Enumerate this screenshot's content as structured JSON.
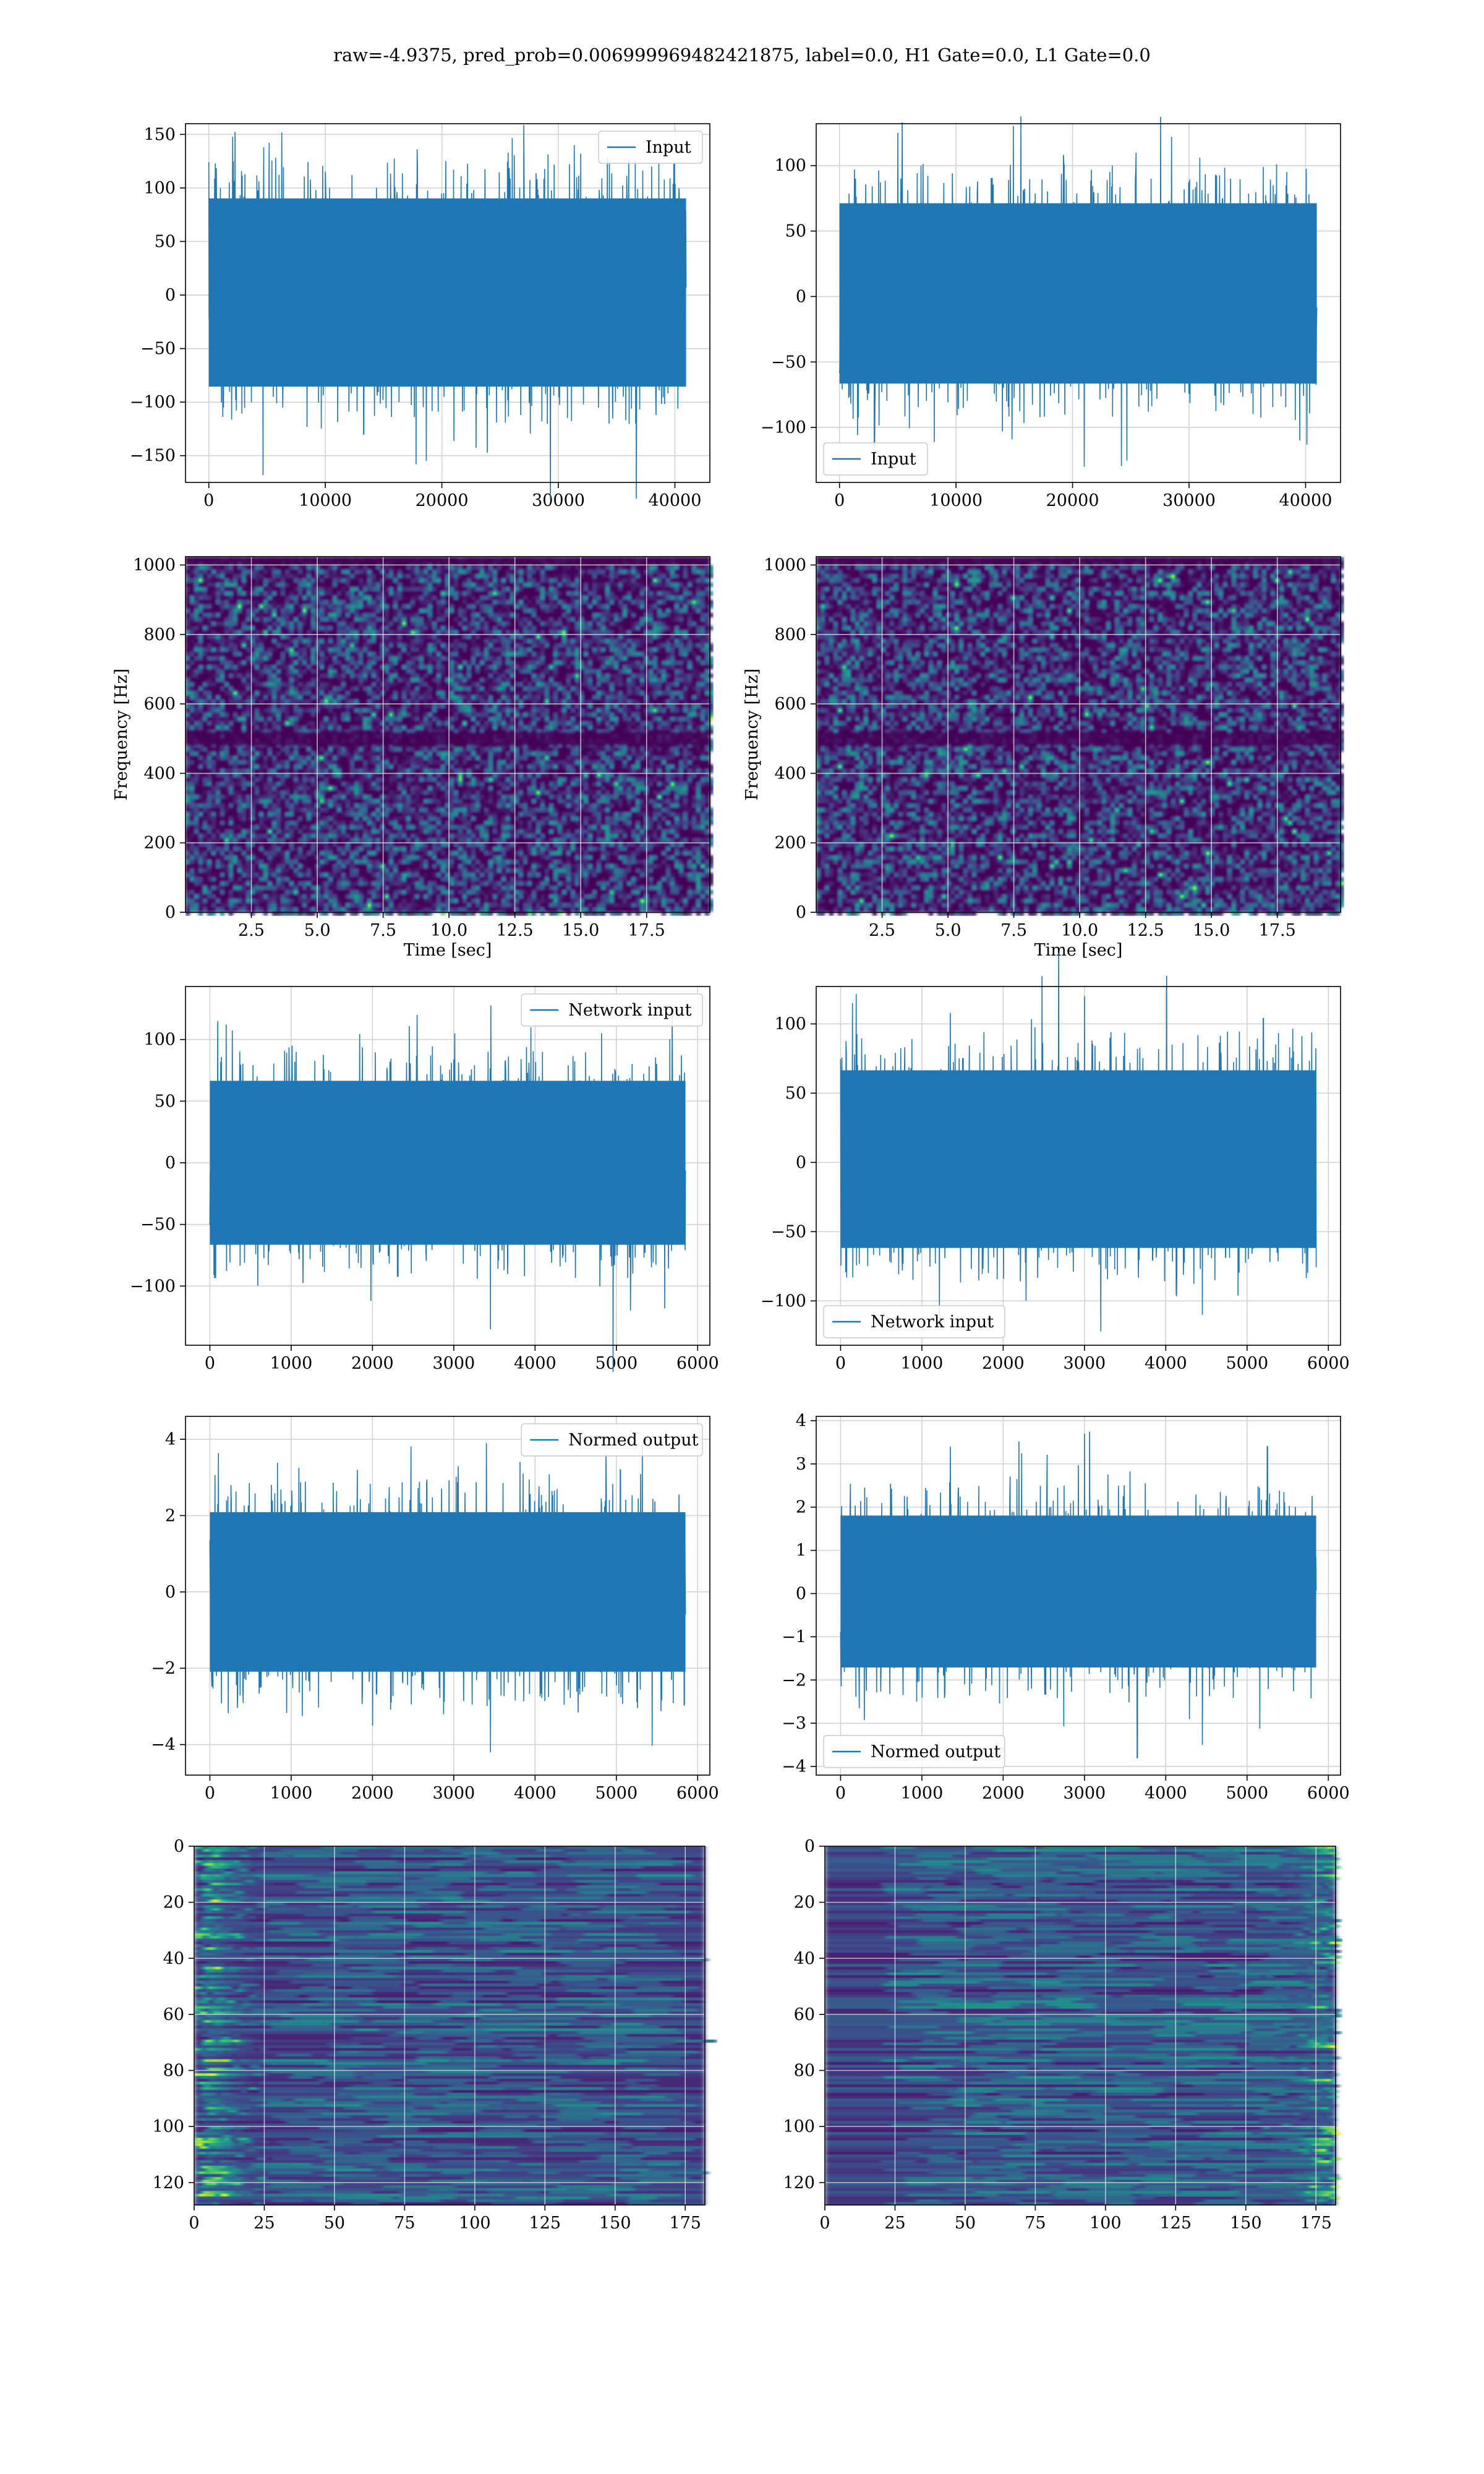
{
  "figure": {
    "title": "raw=-4.9375, pred_prob=0.006999969482421875, label=0.0, H1 Gate=0.0, L1 Gate=0.0"
  },
  "colors": {
    "series": "#1f77b4",
    "grid": "#d3d3d3",
    "viridis_dark": "#440154",
    "viridis_bright": "#fde725"
  },
  "chart_data": [
    {
      "id": "ts-input-h1",
      "type": "line",
      "row": 0,
      "col": 0,
      "xlim": [
        -2000,
        43000
      ],
      "ylim": [
        -175,
        160
      ],
      "xticks": [
        0,
        10000,
        20000,
        30000,
        40000
      ],
      "yticks": [
        -150,
        -100,
        -50,
        0,
        50,
        100,
        150
      ],
      "series": [
        {
          "name": "Input",
          "x_range": [
            0,
            40960
          ],
          "envelope": [
            -90,
            95
          ],
          "peaks": [
            [
              4700,
              138
            ],
            [
              17800,
              -158
            ],
            [
              13300,
              -130
            ],
            [
              21000,
              117
            ],
            [
              38000,
              120
            ]
          ]
        }
      ],
      "legend": "upper right",
      "grid": true,
      "xlabel": "",
      "ylabel": ""
    },
    {
      "id": "ts-input-l1",
      "type": "line",
      "row": 0,
      "col": 1,
      "xlim": [
        -2000,
        43000
      ],
      "ylim": [
        -142,
        132
      ],
      "xticks": [
        0,
        10000,
        20000,
        30000,
        40000
      ],
      "yticks": [
        -100,
        -50,
        0,
        50,
        100
      ],
      "series": [
        {
          "name": "Input",
          "x_range": [
            0,
            40960
          ],
          "envelope": [
            -70,
            75
          ],
          "peaks": [
            [
              5000,
              125
            ],
            [
              28500,
              122
            ],
            [
              3000,
              -115
            ],
            [
              21000,
              -130
            ],
            [
              39500,
              -110
            ]
          ]
        }
      ],
      "legend": "lower left",
      "grid": true,
      "xlabel": "",
      "ylabel": ""
    },
    {
      "id": "spec-h1",
      "type": "heatmap",
      "row": 1,
      "col": 0,
      "xlim": [
        0,
        19.9
      ],
      "ylim": [
        0,
        1024
      ],
      "xticks": [
        2.5,
        5.0,
        7.5,
        10.0,
        12.5,
        15.0,
        17.5
      ],
      "yticks": [
        0,
        200,
        400,
        600,
        800,
        1000
      ],
      "xlabel": "Time [sec]",
      "ylabel": "Frequency [Hz]",
      "grid": true,
      "colormap": "viridis"
    },
    {
      "id": "spec-l1",
      "type": "heatmap",
      "row": 1,
      "col": 1,
      "xlim": [
        0,
        19.9
      ],
      "ylim": [
        0,
        1024
      ],
      "xticks": [
        2.5,
        5.0,
        7.5,
        10.0,
        12.5,
        15.0,
        17.5
      ],
      "yticks": [
        0,
        200,
        400,
        600,
        800,
        1000
      ],
      "xlabel": "Time [sec]",
      "ylabel": "Frequency [Hz]",
      "grid": true,
      "colormap": "viridis"
    },
    {
      "id": "ts-network-h1",
      "type": "line",
      "row": 2,
      "col": 0,
      "xlim": [
        -300,
        6150
      ],
      "ylim": [
        -148,
        143
      ],
      "xticks": [
        0,
        1000,
        2000,
        3000,
        4000,
        5000,
        6000
      ],
      "yticks": [
        -100,
        -50,
        0,
        50,
        100
      ],
      "series": [
        {
          "name": "Network input",
          "x_range": [
            0,
            5850
          ],
          "envelope": [
            -70,
            70
          ],
          "peaks": [
            [
              3450,
              -135
            ],
            [
              1980,
              -112
            ],
            [
              2550,
              120
            ],
            [
              3950,
              110
            ],
            [
              200,
              112
            ]
          ]
        }
      ],
      "legend": "upper right",
      "grid": true,
      "xlabel": "",
      "ylabel": ""
    },
    {
      "id": "ts-network-l1",
      "type": "line",
      "row": 2,
      "col": 1,
      "xlim": [
        -300,
        6150
      ],
      "ylim": [
        -132,
        127
      ],
      "xticks": [
        0,
        1000,
        2000,
        3000,
        4000,
        5000,
        6000
      ],
      "yticks": [
        -100,
        -50,
        0,
        50,
        100
      ],
      "series": [
        {
          "name": "Network input",
          "x_range": [
            0,
            5850
          ],
          "envelope": [
            -65,
            70
          ],
          "peaks": [
            [
              3000,
              120
            ],
            [
              3200,
              -122
            ],
            [
              4450,
              -110
            ],
            [
              1350,
              108
            ],
            [
              5200,
              104
            ]
          ]
        }
      ],
      "legend": "lower left",
      "grid": true,
      "xlabel": "",
      "ylabel": ""
    },
    {
      "id": "ts-normed-h1",
      "type": "line",
      "row": 3,
      "col": 0,
      "xlim": [
        -300,
        6150
      ],
      "ylim": [
        -4.8,
        4.6
      ],
      "xticks": [
        0,
        1000,
        2000,
        3000,
        4000,
        5000,
        6000
      ],
      "yticks": [
        -4,
        -2,
        0,
        2,
        4
      ],
      "series": [
        {
          "name": "Normed output",
          "x_range": [
            0,
            5850
          ],
          "envelope": [
            -2.2,
            2.2
          ],
          "peaks": [
            [
              3450,
              -4.2
            ],
            [
              3400,
              3.9
            ],
            [
              2000,
              -3.5
            ],
            [
              5050,
              3.2
            ],
            [
              260,
              2.8
            ]
          ]
        }
      ],
      "legend": "upper right",
      "grid": true,
      "xlabel": "",
      "ylabel": ""
    },
    {
      "id": "ts-normed-l1",
      "type": "line",
      "row": 3,
      "col": 1,
      "xlim": [
        -300,
        6150
      ],
      "ylim": [
        -4.2,
        4.1
      ],
      "xticks": [
        0,
        1000,
        2000,
        3000,
        4000,
        5000,
        6000
      ],
      "yticks": [
        -4,
        -3,
        -2,
        -1,
        0,
        1,
        2,
        3,
        4
      ],
      "series": [
        {
          "name": "Normed output",
          "x_range": [
            0,
            5850
          ],
          "envelope": [
            -1.8,
            1.9
          ],
          "peaks": [
            [
              3000,
              3.7
            ],
            [
              3650,
              -3.8
            ],
            [
              4450,
              -3.5
            ],
            [
              1350,
              3.4
            ],
            [
              5250,
              3.4
            ]
          ]
        }
      ],
      "legend": "lower left",
      "grid": true,
      "xlabel": "",
      "ylabel": ""
    },
    {
      "id": "feat-h1",
      "type": "heatmap",
      "row": 4,
      "col": 0,
      "xlim": [
        0,
        182
      ],
      "ylim": [
        128,
        0
      ],
      "xticks": [
        0,
        25,
        50,
        75,
        100,
        125,
        150,
        175
      ],
      "yticks": [
        0,
        20,
        40,
        60,
        80,
        100,
        120
      ],
      "grid": true,
      "colormap": "viridis",
      "bright_edge": "left",
      "xlabel": "",
      "ylabel": ""
    },
    {
      "id": "feat-l1",
      "type": "heatmap",
      "row": 4,
      "col": 1,
      "xlim": [
        0,
        182
      ],
      "ylim": [
        128,
        0
      ],
      "xticks": [
        0,
        25,
        50,
        75,
        100,
        125,
        150,
        175
      ],
      "yticks": [
        0,
        20,
        40,
        60,
        80,
        100,
        120
      ],
      "grid": true,
      "colormap": "viridis",
      "bright_edge": "right",
      "xlabel": "",
      "ylabel": ""
    }
  ]
}
